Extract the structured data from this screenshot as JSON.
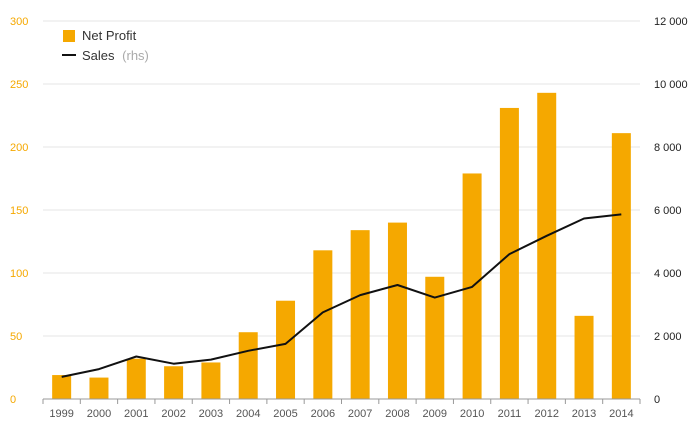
{
  "chart_data": {
    "type": "bar",
    "categories": [
      "1999",
      "2000",
      "2001",
      "2002",
      "2003",
      "2004",
      "2005",
      "2006",
      "2007",
      "2008",
      "2009",
      "2010",
      "2011",
      "2012",
      "2013",
      "2014"
    ],
    "series": [
      {
        "name": "Net Profit",
        "type": "bar",
        "axis": "left",
        "color": "#f5a800",
        "values": [
          19,
          17,
          32,
          26,
          29,
          53,
          78,
          118,
          134,
          140,
          97,
          179,
          231,
          243,
          66,
          211
        ]
      },
      {
        "name": "Sales",
        "type": "line",
        "axis": "right",
        "color": "#111111",
        "values": [
          700,
          950,
          1350,
          1120,
          1250,
          1530,
          1750,
          2750,
          3300,
          3620,
          3220,
          3560,
          4600,
          5180,
          5730,
          5860
        ]
      }
    ],
    "legend": {
      "position": "top-left",
      "items": [
        {
          "label": "Net Profit"
        },
        {
          "label": "Sales",
          "suffix": "(rhs)"
        }
      ]
    },
    "y_left": {
      "range": [
        0,
        300
      ],
      "ticks": [
        "0",
        "50",
        "100",
        "150",
        "200",
        "250",
        "300"
      ],
      "color": "#f5a800"
    },
    "y_right": {
      "range": [
        0,
        12000
      ],
      "ticks": [
        "0",
        "2 000",
        "4 000",
        "6 000",
        "8 000",
        "10 000",
        "12 000"
      ],
      "color": "#222222"
    },
    "grid": true
  }
}
